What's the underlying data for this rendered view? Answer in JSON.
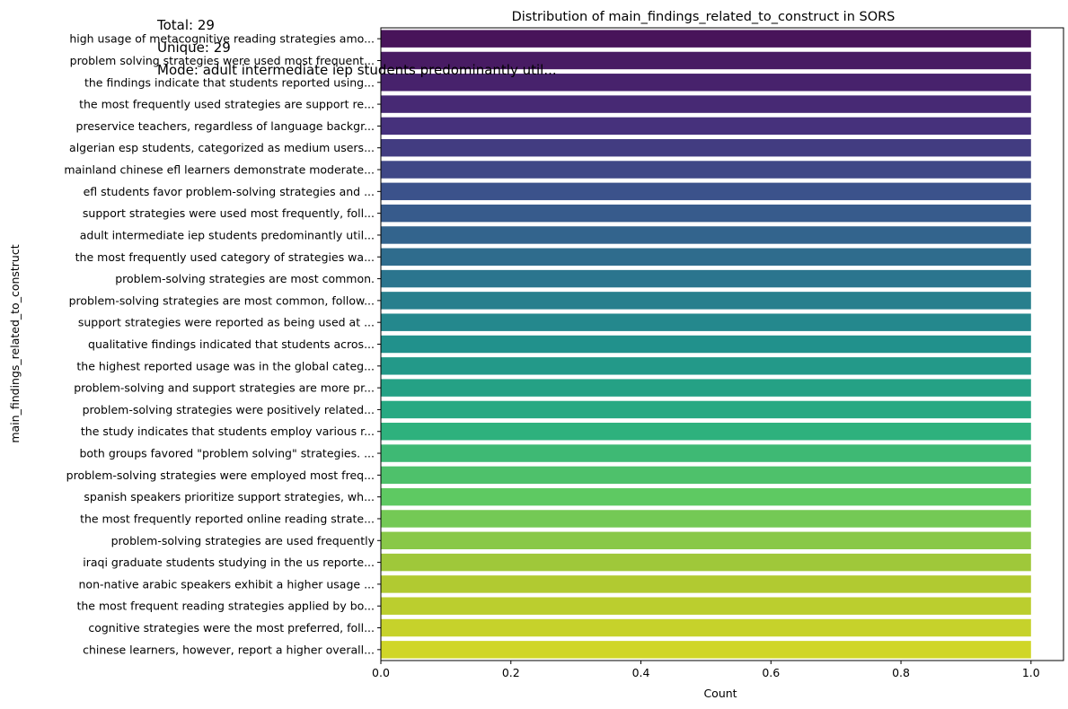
{
  "chart_data": {
    "type": "bar",
    "orientation": "horizontal",
    "title": "Distribution of main_findings_related_to_construct in SORS",
    "xlabel": "Count",
    "ylabel": "main_findings_related_to_construct",
    "xlim": [
      0,
      1.05
    ],
    "xticks": [
      "0.0",
      "0.2",
      "0.4",
      "0.6",
      "0.8",
      "1.0"
    ],
    "grid": false,
    "colormap": "viridis",
    "categories": [
      "high usage of metacognitive reading strategies amo...",
      "problem solving strategies were used most frequent...",
      "the findings indicate that students reported using...",
      "the most frequently used strategies are support re...",
      "preservice teachers, regardless of language backgr...",
      "algerian esp students, categorized as medium users...",
      "mainland chinese efl learners demonstrate moderate...",
      "efl students favor problem-solving strategies and ...",
      "support strategies were used most frequently, foll...",
      "adult intermediate iep students predominantly util...",
      "the most frequently used category of strategies wa...",
      "problem-solving strategies are most common.",
      "problem-solving strategies are most common, follow...",
      "support strategies were reported as being used at ...",
      "qualitative findings indicated that students acros...",
      "the highest reported usage was in the global categ...",
      "problem-solving and support strategies are more pr...",
      "problem-solving strategies were positively related...",
      "the study indicates that students employ various r...",
      "both groups favored \"problem solving\" strategies. ...",
      "problem-solving strategies were employed most freq...",
      "spanish speakers prioritize support strategies, wh...",
      "the most frequently reported online reading strate...",
      "problem-solving strategies are used frequently",
      "iraqi graduate students studying in the us reporte...",
      "non-native arabic speakers exhibit a higher usage ...",
      "the most frequent reading strategies applied by bo...",
      "cognitive strategies were the most preferred, foll...",
      "chinese learners, however, report a higher overall..."
    ],
    "values": [
      1,
      1,
      1,
      1,
      1,
      1,
      1,
      1,
      1,
      1,
      1,
      1,
      1,
      1,
      1,
      1,
      1,
      1,
      1,
      1,
      1,
      1,
      1,
      1,
      1,
      1,
      1,
      1,
      1
    ]
  },
  "stats": {
    "total": "Total: 29",
    "unique": "Unique: 29",
    "mode": "Mode: adult intermediate iep students predominantly util..."
  }
}
